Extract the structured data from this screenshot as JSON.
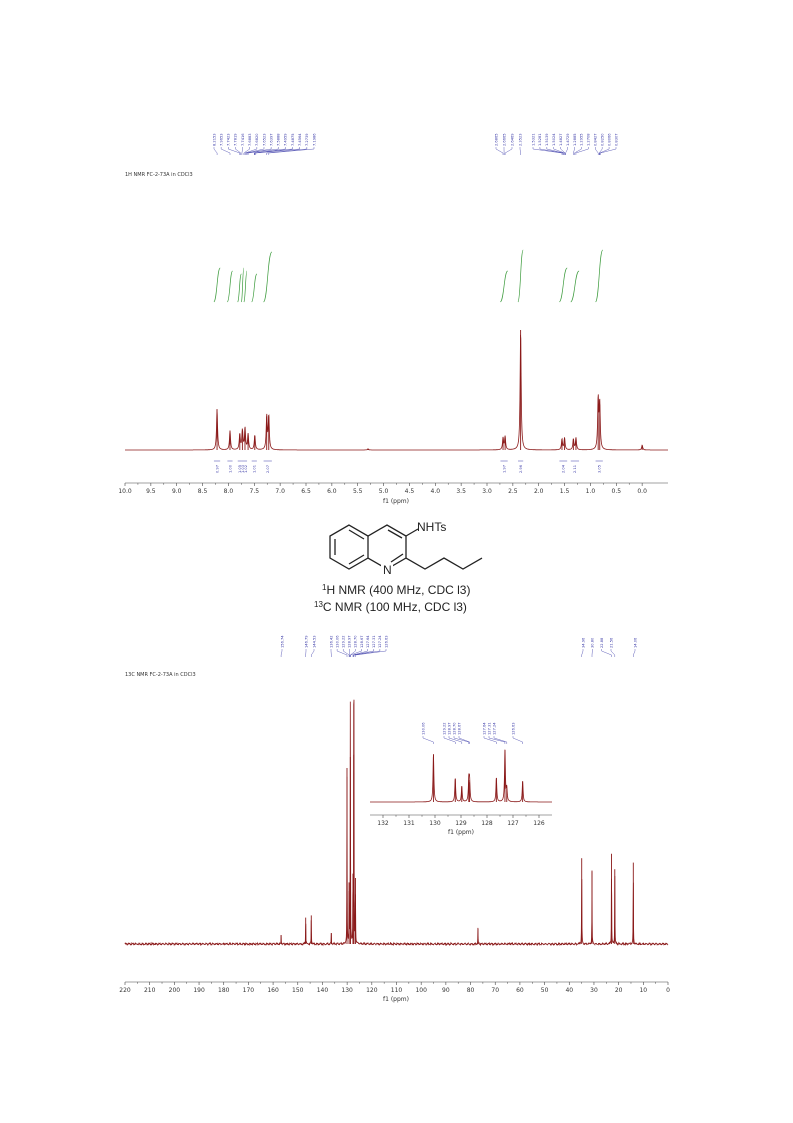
{
  "structure": {
    "substituent_label": "NHTs",
    "ring_atom_label": "N",
    "caption_lines": [
      {
        "sup": "1",
        "text": "H NMR (400 MHz, CDC l3)"
      },
      {
        "sup": "13",
        "text": "C NMR (100 MHz, CDC l3)"
      }
    ]
  },
  "chart_data": [
    {
      "type": "line",
      "title": "1H NMR FC-2-73A in CDCl3",
      "xlabel": "f1 (ppm)",
      "ylabel": "",
      "xlim": [
        10.0,
        -0.5
      ],
      "x_reversed": true,
      "x_ticks": [
        "10.0",
        "9.5",
        "9.0",
        "8.5",
        "8.0",
        "7.5",
        "7.0",
        "6.5",
        "6.0",
        "5.5",
        "5.0",
        "4.5",
        "4.0",
        "3.5",
        "3.0",
        "2.5",
        "2.0",
        "1.5",
        "1.0",
        "0.5",
        "0.0"
      ],
      "grid": false,
      "line_color": "#8b1a1a",
      "integral_color": "#3a9a3a",
      "label_color": "#3a3aa8",
      "peaks": [
        {
          "ppm": 8.22,
          "height": 0.34
        },
        {
          "ppm": 7.97,
          "height": 0.16
        },
        {
          "ppm": 7.78,
          "height": 0.13
        },
        {
          "ppm": 7.73,
          "height": 0.16
        },
        {
          "ppm": 7.68,
          "height": 0.18
        },
        {
          "ppm": 7.62,
          "height": 0.13
        },
        {
          "ppm": 7.49,
          "height": 0.12
        },
        {
          "ppm": 7.26,
          "height": 0.28
        },
        {
          "ppm": 7.22,
          "height": 0.28
        },
        {
          "ppm": 5.3,
          "height": 0.01
        },
        {
          "ppm": 2.69,
          "height": 0.1
        },
        {
          "ppm": 2.65,
          "height": 0.11
        },
        {
          "ppm": 2.35,
          "height": 1.0
        },
        {
          "ppm": 1.55,
          "height": 0.09
        },
        {
          "ppm": 1.5,
          "height": 0.1
        },
        {
          "ppm": 1.33,
          "height": 0.09
        },
        {
          "ppm": 1.28,
          "height": 0.1
        },
        {
          "ppm": 0.85,
          "height": 0.42
        },
        {
          "ppm": 0.82,
          "height": 0.38
        },
        {
          "ppm": 0.0,
          "height": 0.04
        }
      ],
      "peak_labels": [
        "8.2153",
        "7.9653",
        "7.7423",
        "7.7819",
        "7.7416",
        "7.6883",
        "7.6820",
        "7.6523",
        "7.6397",
        "7.5888",
        "7.4959",
        "7.4875",
        "7.4564",
        "7.2739",
        "7.1986",
        "2.6865",
        "2.6665",
        "2.6469",
        "2.3523",
        "1.5321",
        "1.5281",
        "1.5139",
        "1.5024",
        "1.4827",
        "1.4729",
        "1.2885",
        "1.2955",
        "1.2708",
        "0.8427",
        "0.8250",
        "0.8066",
        "0.8307"
      ],
      "integrals": [
        {
          "ppm_from": 8.28,
          "ppm_to": 8.16,
          "value": "0.97"
        },
        {
          "ppm_from": 8.02,
          "ppm_to": 7.92,
          "value": "1.00"
        },
        {
          "ppm_from": 7.82,
          "ppm_to": 7.75,
          "value": "1.05"
        },
        {
          "ppm_from": 7.75,
          "ppm_to": 7.7,
          "value": "1.03"
        },
        {
          "ppm_from": 7.7,
          "ppm_to": 7.64,
          "value": "1.02"
        },
        {
          "ppm_from": 7.55,
          "ppm_to": 7.45,
          "value": "1.01"
        },
        {
          "ppm_from": 7.32,
          "ppm_to": 7.16,
          "value": "2.07"
        },
        {
          "ppm_from": 2.74,
          "ppm_to": 2.6,
          "value": "1.97"
        },
        {
          "ppm_from": 2.4,
          "ppm_to": 2.3,
          "value": "2.96"
        },
        {
          "ppm_from": 1.6,
          "ppm_to": 1.45,
          "value": "2.04"
        },
        {
          "ppm_from": 1.38,
          "ppm_to": 1.22,
          "value": "2.11"
        },
        {
          "ppm_from": 0.9,
          "ppm_to": 0.76,
          "value": "3.05"
        }
      ]
    },
    {
      "type": "line",
      "title": "13C NMR FC-2-73A in CDCl3",
      "xlabel": "f1 (ppm)",
      "ylabel": "",
      "xlim": [
        220,
        0
      ],
      "x_reversed": true,
      "x_ticks": [
        "220",
        "210",
        "200",
        "190",
        "180",
        "170",
        "160",
        "150",
        "140",
        "130",
        "120",
        "110",
        "100",
        "90",
        "80",
        "70",
        "60",
        "50",
        "40",
        "30",
        "20",
        "10",
        "0"
      ],
      "grid": false,
      "line_color": "#8b1a1a",
      "label_color": "#3a3aa8",
      "peaks": [
        {
          "ppm": 156.74,
          "height": 0.04
        },
        {
          "ppm": 146.79,
          "height": 0.12
        },
        {
          "ppm": 144.53,
          "height": 0.13
        },
        {
          "ppm": 136.42,
          "height": 0.05
        },
        {
          "ppm": 130.06,
          "height": 0.8
        },
        {
          "ppm": 129.22,
          "height": 0.28
        },
        {
          "ppm": 128.7,
          "height": 0.85
        },
        {
          "ppm": 128.67,
          "height": 0.3
        },
        {
          "ppm": 127.64,
          "height": 0.32
        },
        {
          "ppm": 127.31,
          "height": 0.86
        },
        {
          "ppm": 127.24,
          "height": 0.78
        },
        {
          "ppm": 126.63,
          "height": 0.3
        },
        {
          "ppm": 77.0,
          "height": 0.07
        },
        {
          "ppm": 34.96,
          "height": 0.39
        },
        {
          "ppm": 30.8,
          "height": 0.33
        },
        {
          "ppm": 22.88,
          "height": 0.41
        },
        {
          "ppm": 21.56,
          "height": 0.34
        },
        {
          "ppm": 14.06,
          "height": 0.37
        }
      ],
      "peak_labels": [
        "156.74",
        "146.79",
        "144.53",
        "136.42",
        "130.06",
        "129.22",
        "128.97",
        "128.70",
        "128.67",
        "127.64",
        "127.31",
        "127.24",
        "126.63",
        "34.96",
        "30.80",
        "22.88",
        "21.56",
        "14.06"
      ]
    },
    {
      "type": "line",
      "title": "",
      "xlabel": "f1 (ppm)",
      "ylabel": "",
      "xlim": [
        132.5,
        125.5
      ],
      "x_reversed": true,
      "x_ticks": [
        "132",
        "131",
        "130",
        "129",
        "128",
        "127",
        "126"
      ],
      "grid": false,
      "line_color": "#8b1a1a",
      "label_color": "#3a3aa8",
      "peaks": [
        {
          "ppm": 130.06,
          "height": 0.92
        },
        {
          "ppm": 129.22,
          "height": 0.45
        },
        {
          "ppm": 128.97,
          "height": 0.3
        },
        {
          "ppm": 128.7,
          "height": 0.42
        },
        {
          "ppm": 128.67,
          "height": 0.38
        },
        {
          "ppm": 127.64,
          "height": 0.46
        },
        {
          "ppm": 127.31,
          "height": 1.0
        },
        {
          "ppm": 127.24,
          "height": 0.25
        },
        {
          "ppm": 126.63,
          "height": 0.4
        }
      ],
      "peak_labels": [
        "130.06",
        "129.22",
        "128.97",
        "128.70",
        "128.67",
        "127.64",
        "127.31",
        "127.24",
        "126.63"
      ]
    }
  ]
}
